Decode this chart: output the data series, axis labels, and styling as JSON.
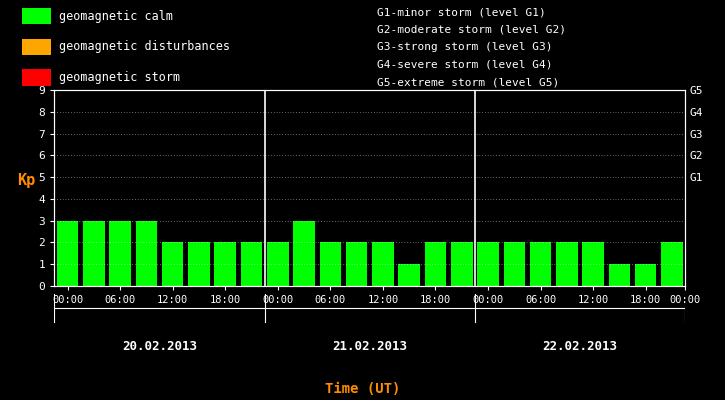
{
  "background_color": "#000000",
  "plot_bg_color": "#000000",
  "bar_color": "#00ff00",
  "axis_color": "#ffffff",
  "ylabel_color": "#ff8c00",
  "xlabel_color": "#ff8c00",
  "right_label_color": "#ffffff",
  "days": [
    "20.02.2013",
    "21.02.2013",
    "22.02.2013"
  ],
  "kp_values": [
    [
      3,
      3,
      3,
      3,
      2,
      2,
      2,
      2
    ],
    [
      2,
      3,
      2,
      2,
      2,
      1,
      2,
      2
    ],
    [
      2,
      2,
      2,
      2,
      2,
      1,
      1,
      2
    ]
  ],
  "ylim": [
    0,
    9
  ],
  "yticks": [
    0,
    1,
    2,
    3,
    4,
    5,
    6,
    7,
    8,
    9
  ],
  "ylabel": "Kp",
  "xlabel": "Time (UT)",
  "legend_items": [
    {
      "label": "geomagnetic calm",
      "color": "#00ff00"
    },
    {
      "label": "geomagnetic disturbances",
      "color": "#ffa500"
    },
    {
      "label": "geomagnetic storm",
      "color": "#ff0000"
    }
  ],
  "right_labels": [
    {
      "y": 5,
      "text": "G1"
    },
    {
      "y": 6,
      "text": "G2"
    },
    {
      "y": 7,
      "text": "G3"
    },
    {
      "y": 8,
      "text": "G4"
    },
    {
      "y": 9,
      "text": "G5"
    }
  ],
  "storm_legend": [
    "G1-minor storm (level G1)",
    "G2-moderate storm (level G2)",
    "G3-strong storm (level G3)",
    "G4-severe storm (level G4)",
    "G5-extreme storm (level G5)"
  ],
  "xtick_labels": [
    "00:00",
    "06:00",
    "12:00",
    "18:00",
    "00:00",
    "06:00",
    "12:00",
    "18:00",
    "00:00",
    "06:00",
    "12:00",
    "18:00",
    "00:00"
  ],
  "font_family": "monospace"
}
